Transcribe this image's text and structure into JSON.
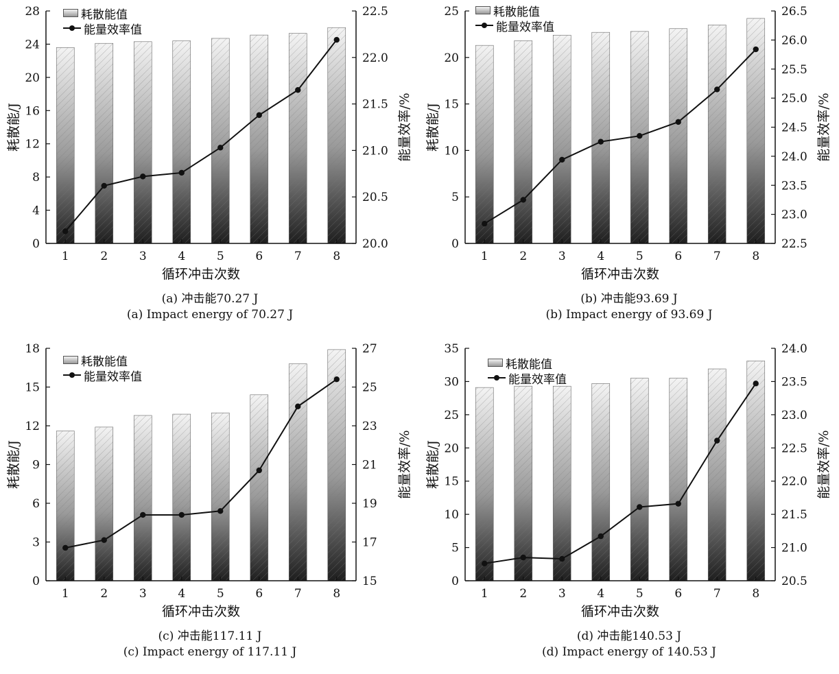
{
  "common": {
    "xlabel": "循环冲击次数",
    "ylabel_left": "耗散能/J",
    "ylabel_right": "能量效率/%",
    "legend_bar": "耗散能值",
    "legend_line": "能量效率值",
    "line_color": "#111111",
    "bar_top_color": "#f4f4f4",
    "bar_bottom_color": "#1e1e1e"
  },
  "panels": [
    {
      "caption_cn": "(a) 冲击能70.27 J",
      "caption_en": "(a) Impact energy of 70.27 J"
    },
    {
      "caption_cn": "(b) 冲击能93.69 J",
      "caption_en": "(b) Impact energy of 93.69 J"
    },
    {
      "caption_cn": "(c) 冲击能117.11 J",
      "caption_en": "(c) Impact energy of 117.11 J"
    },
    {
      "caption_cn": "(d) 冲击能140.53 J",
      "caption_en": "(d) Impact energy of 140.53 J"
    }
  ],
  "chart_data": [
    {
      "type": "bar",
      "categories": [
        "1",
        "2",
        "3",
        "4",
        "5",
        "6",
        "7",
        "8"
      ],
      "series": [
        {
          "name": "耗散能值",
          "axis": "left",
          "type": "bar",
          "values": [
            23.6,
            24.1,
            24.3,
            24.4,
            24.7,
            25.1,
            25.3,
            26.0
          ]
        },
        {
          "name": "能量效率值",
          "axis": "right",
          "type": "line",
          "values": [
            20.13,
            20.62,
            20.72,
            20.76,
            21.03,
            21.38,
            21.65,
            22.19
          ]
        }
      ],
      "ylim_left": [
        0,
        28
      ],
      "yticks_left": [
        "0",
        "4",
        "8",
        "12",
        "16",
        "20",
        "24",
        "28"
      ],
      "ylim_right": [
        20.0,
        22.5
      ],
      "yticks_right": [
        "20.0",
        "20.5",
        "21.0",
        "21.5",
        "22.0",
        "22.5"
      ],
      "legend": "top-left",
      "grid": false
    },
    {
      "type": "bar",
      "categories": [
        "1",
        "2",
        "3",
        "4",
        "5",
        "6",
        "7",
        "8"
      ],
      "series": [
        {
          "name": "耗散能值",
          "axis": "left",
          "type": "bar",
          "values": [
            21.3,
            21.8,
            22.4,
            22.7,
            22.8,
            23.1,
            23.5,
            24.2
          ]
        },
        {
          "name": "能量效率值",
          "axis": "right",
          "type": "line",
          "values": [
            22.84,
            23.25,
            23.94,
            24.25,
            24.35,
            24.59,
            25.15,
            25.84
          ]
        }
      ],
      "ylim_left": [
        0,
        25
      ],
      "yticks_left": [
        "0",
        "5",
        "10",
        "15",
        "20",
        "25"
      ],
      "ylim_right": [
        22.5,
        26.5
      ],
      "yticks_right": [
        "22.5",
        "23.0",
        "23.5",
        "24.0",
        "24.5",
        "25.0",
        "25.5",
        "26.0",
        "26.5"
      ],
      "legend": "top-left",
      "grid": false
    },
    {
      "type": "bar",
      "categories": [
        "1",
        "2",
        "3",
        "4",
        "5",
        "6",
        "7",
        "8"
      ],
      "series": [
        {
          "name": "耗散能值",
          "axis": "left",
          "type": "bar",
          "values": [
            11.6,
            11.9,
            12.8,
            12.9,
            13.0,
            14.4,
            16.8,
            17.9
          ]
        },
        {
          "name": "能量效率值",
          "axis": "right",
          "type": "line",
          "values": [
            16.7,
            17.1,
            18.4,
            18.4,
            18.6,
            20.7,
            24.0,
            25.4
          ]
        }
      ],
      "ylim_left": [
        0,
        18
      ],
      "yticks_left": [
        "0",
        "3",
        "6",
        "9",
        "12",
        "15",
        "18"
      ],
      "ylim_right": [
        15,
        27
      ],
      "yticks_right": [
        "15",
        "17",
        "19",
        "21",
        "23",
        "25",
        "27"
      ],
      "legend": "top-left",
      "grid": false
    },
    {
      "type": "bar",
      "categories": [
        "1",
        "2",
        "3",
        "4",
        "5",
        "6",
        "7",
        "8"
      ],
      "series": [
        {
          "name": "耗散能值",
          "axis": "left",
          "type": "bar",
          "values": [
            29.1,
            29.3,
            29.3,
            29.7,
            30.5,
            30.5,
            31.9,
            33.1
          ]
        },
        {
          "name": "能量效率值",
          "axis": "right",
          "type": "line",
          "values": [
            20.76,
            20.85,
            20.83,
            21.17,
            21.61,
            21.66,
            22.61,
            23.47
          ]
        }
      ],
      "ylim_left": [
        0,
        35
      ],
      "yticks_left": [
        "0",
        "5",
        "10",
        "15",
        "20",
        "25",
        "30",
        "35"
      ],
      "ylim_right": [
        20.5,
        24.0
      ],
      "yticks_right": [
        "20.5",
        "21.0",
        "21.5",
        "22.0",
        "22.5",
        "23.0",
        "23.5",
        "24.0"
      ],
      "legend": "top-left",
      "grid": false
    }
  ]
}
